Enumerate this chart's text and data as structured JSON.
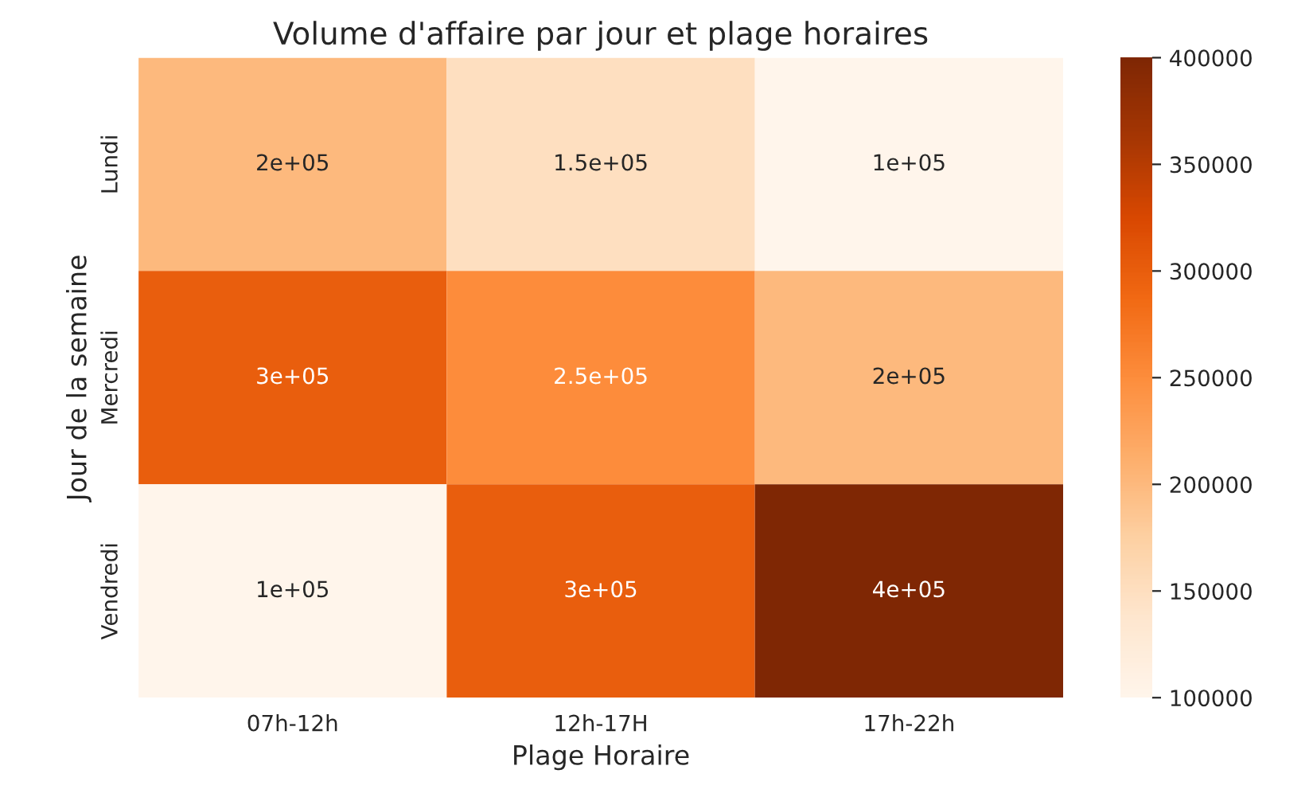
{
  "chart_data": {
    "type": "heatmap",
    "title": "Volume d'affaire par jour et plage horaires",
    "xlabel": "Plage Horaire",
    "ylabel": "Jour de la semaine",
    "categories": [
      "07h-12h",
      "12h-17H",
      "17h-22h"
    ],
    "y_categories": [
      "Lundi",
      "Mercredi",
      "Vendredi"
    ],
    "cells": [
      [
        200000,
        150000,
        100000
      ],
      [
        300000,
        250000,
        200000
      ],
      [
        100000,
        300000,
        400000
      ]
    ],
    "cell_labels": [
      [
        "2e+05",
        "1.5e+05",
        "1e+05"
      ],
      [
        "3e+05",
        "2.5e+05",
        "2e+05"
      ],
      [
        "1e+05",
        "3e+05",
        "4e+05"
      ]
    ],
    "clim": [
      100000,
      400000
    ],
    "cticks": [
      100000,
      150000,
      200000,
      250000,
      300000,
      350000,
      400000
    ]
  }
}
